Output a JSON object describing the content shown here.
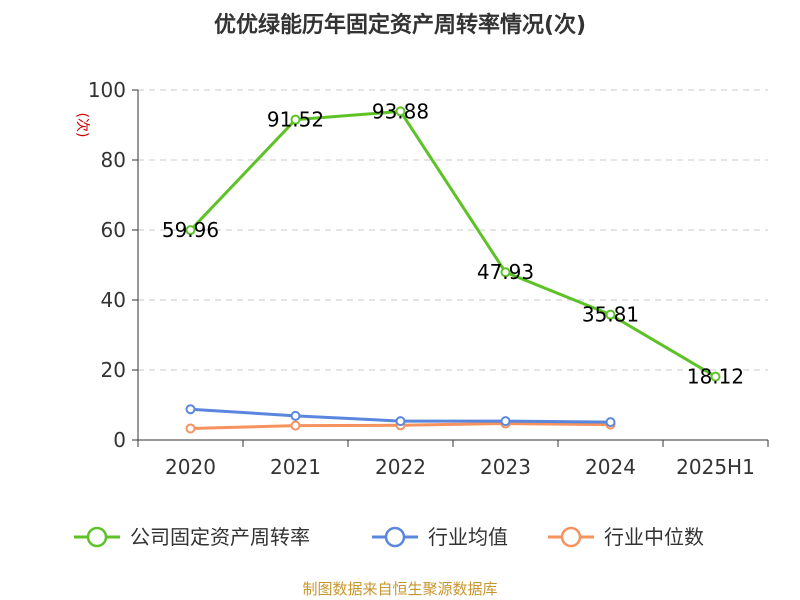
{
  "chart_data": {
    "type": "line",
    "title": "优优绿能历年固定资产周转率情况(次)",
    "ylabel": "(次)",
    "categories": [
      "2020",
      "2021",
      "2022",
      "2023",
      "2024",
      "2025H1"
    ],
    "ylim": [
      0,
      100
    ],
    "yticks": [
      0,
      20,
      40,
      60,
      80,
      100
    ],
    "grid": true,
    "legend_position": "bottom",
    "series": [
      {
        "name": "公司固定资产周转率",
        "color": "#5dc226",
        "values": [
          59.96,
          91.52,
          93.88,
          47.93,
          35.81,
          18.12
        ],
        "labels": [
          "59.96",
          "91.52",
          "93.88",
          "47.93",
          "35.81",
          "18.12"
        ]
      },
      {
        "name": "行业均值",
        "color": "#5b86de",
        "values": [
          8.8,
          6.9,
          5.4,
          5.4,
          5.1,
          null
        ]
      },
      {
        "name": "行业中位数",
        "color": "#f5925e",
        "values": [
          3.3,
          4.1,
          4.2,
          4.7,
          4.4,
          null
        ]
      }
    ],
    "source": "制图数据来自恒生聚源数据库"
  }
}
